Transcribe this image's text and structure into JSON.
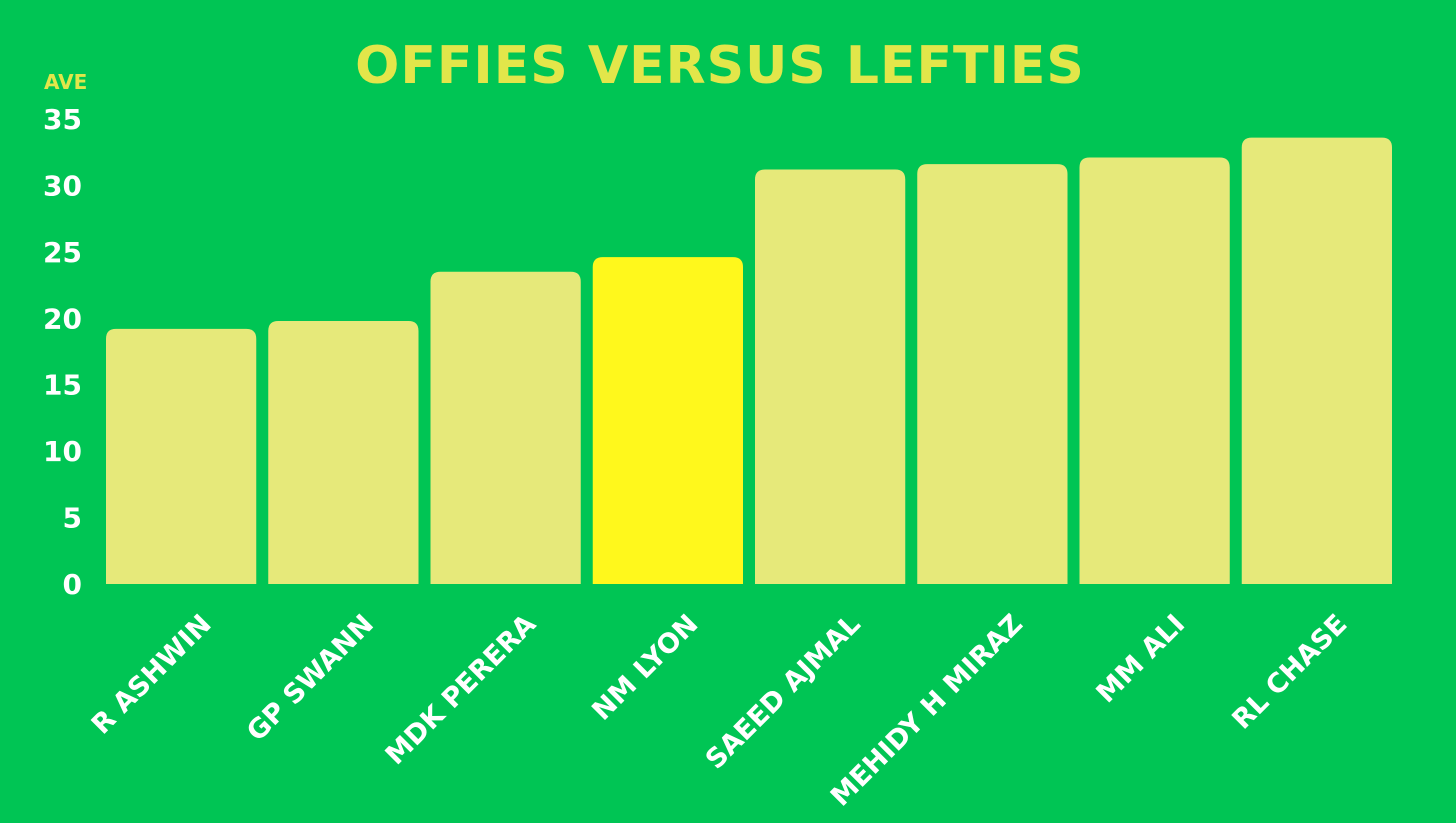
{
  "colors": {
    "background": "#00c554",
    "bar": "#e6e97a",
    "bar_highlight": "#fff81c",
    "title": "#e2e64a",
    "tick_text": "#ffffff"
  },
  "chart_data": {
    "type": "bar",
    "title": "OFFIES VERSUS LEFTIES",
    "ylabel": "AVE",
    "xlabel": "",
    "ylim": [
      0,
      35
    ],
    "yticks": [
      0,
      5,
      10,
      15,
      20,
      25,
      30,
      35
    ],
    "categories": [
      "R ASHWIN",
      "GP SWANN",
      "MDK PERERA",
      "NM LYON",
      "SAEED AJMAL",
      "MEHIDY H MIRAZ",
      "MM ALI",
      "RL CHASE"
    ],
    "values": [
      19.2,
      19.8,
      23.5,
      24.6,
      31.2,
      31.6,
      32.1,
      33.6
    ],
    "highlight": "NM LYON",
    "grid": false,
    "legend": "none"
  }
}
